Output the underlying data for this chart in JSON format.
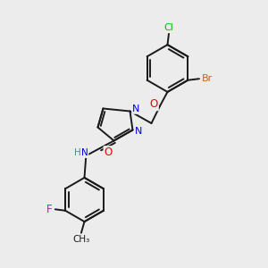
{
  "background_color": "#ececec",
  "bond_color": "#1a1a1a",
  "atom_colors": {
    "N": "#0000ee",
    "O": "#ee0000",
    "F": "#dd00dd",
    "Cl": "#00bb00",
    "Br": "#cc6600",
    "C": "#1a1a1a",
    "H": "#558888"
  },
  "bond_width": 1.4
}
